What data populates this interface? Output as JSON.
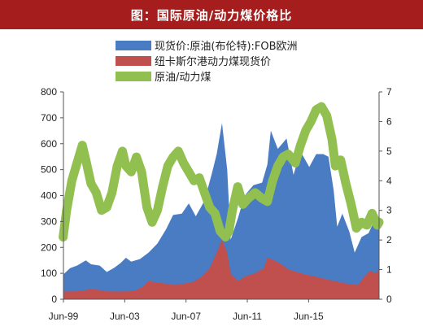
{
  "title": "图：国际原油/动力煤价格比",
  "chart_data": {
    "type": "area",
    "x_labels": [
      "Jun-99",
      "Jun-03",
      "Jun-07",
      "Jun-11",
      "Jun-15"
    ],
    "x_range": [
      1999.42,
      2017.5
    ],
    "y_left": {
      "min": 0,
      "max": 800,
      "ticks": [
        0,
        100,
        200,
        300,
        400,
        500,
        600,
        700,
        800
      ]
    },
    "y_right": {
      "min": 0,
      "max": 7,
      "ticks": [
        0,
        1,
        2,
        3,
        4,
        5,
        6,
        7
      ]
    },
    "series": [
      {
        "name": "现货价:原油(布伦特):FOB欧洲",
        "type": "area",
        "axis": "left",
        "color": "#4a7cc4",
        "points": [
          [
            1999.4,
            95
          ],
          [
            1999.8,
            120
          ],
          [
            2000.2,
            130
          ],
          [
            2000.7,
            150
          ],
          [
            2001.0,
            135
          ],
          [
            2001.5,
            130
          ],
          [
            2001.9,
            105
          ],
          [
            2002.3,
            120
          ],
          [
            2002.7,
            140
          ],
          [
            2003.0,
            160
          ],
          [
            2003.3,
            145
          ],
          [
            2003.8,
            155
          ],
          [
            2004.3,
            180
          ],
          [
            2004.8,
            215
          ],
          [
            2005.3,
            270
          ],
          [
            2005.7,
            325
          ],
          [
            2006.2,
            330
          ],
          [
            2006.6,
            370
          ],
          [
            2007.0,
            320
          ],
          [
            2007.5,
            380
          ],
          [
            2007.9,
            480
          ],
          [
            2008.2,
            560
          ],
          [
            2008.5,
            680
          ],
          [
            2008.8,
            500
          ],
          [
            2009.0,
            230
          ],
          [
            2009.4,
            310
          ],
          [
            2009.8,
            400
          ],
          [
            2010.3,
            440
          ],
          [
            2010.8,
            450
          ],
          [
            2011.1,
            520
          ],
          [
            2011.3,
            650
          ],
          [
            2011.7,
            580
          ],
          [
            2012.2,
            620
          ],
          [
            2012.6,
            480
          ],
          [
            2013.0,
            570
          ],
          [
            2013.5,
            510
          ],
          [
            2013.9,
            560
          ],
          [
            2014.3,
            560
          ],
          [
            2014.6,
            550
          ],
          [
            2014.9,
            420
          ],
          [
            2015.1,
            280
          ],
          [
            2015.4,
            330
          ],
          [
            2015.8,
            260
          ],
          [
            2016.1,
            180
          ],
          [
            2016.5,
            240
          ],
          [
            2016.9,
            255
          ],
          [
            2017.2,
            300
          ],
          [
            2017.5,
            280
          ]
        ]
      },
      {
        "name": "纽卡斯尔港动力煤现货价",
        "type": "area",
        "axis": "left",
        "color": "#c0504d",
        "points": [
          [
            1999.4,
            30
          ],
          [
            2000.0,
            30
          ],
          [
            2000.5,
            32
          ],
          [
            2001.0,
            40
          ],
          [
            2001.5,
            35
          ],
          [
            2002.0,
            30
          ],
          [
            2002.5,
            30
          ],
          [
            2003.0,
            30
          ],
          [
            2003.5,
            32
          ],
          [
            2004.0,
            50
          ],
          [
            2004.3,
            70
          ],
          [
            2004.8,
            65
          ],
          [
            2005.3,
            60
          ],
          [
            2005.8,
            55
          ],
          [
            2006.3,
            60
          ],
          [
            2006.8,
            65
          ],
          [
            2007.3,
            85
          ],
          [
            2007.8,
            120
          ],
          [
            2008.2,
            180
          ],
          [
            2008.5,
            230
          ],
          [
            2008.8,
            180
          ],
          [
            2009.0,
            100
          ],
          [
            2009.4,
            70
          ],
          [
            2009.9,
            90
          ],
          [
            2010.4,
            100
          ],
          [
            2010.9,
            120
          ],
          [
            2011.1,
            160
          ],
          [
            2011.5,
            150
          ],
          [
            2011.9,
            135
          ],
          [
            2012.3,
            115
          ],
          [
            2012.8,
            105
          ],
          [
            2013.3,
            95
          ],
          [
            2013.8,
            88
          ],
          [
            2014.3,
            80
          ],
          [
            2014.8,
            72
          ],
          [
            2015.3,
            65
          ],
          [
            2015.8,
            58
          ],
          [
            2016.3,
            55
          ],
          [
            2016.7,
            90
          ],
          [
            2017.0,
            110
          ],
          [
            2017.3,
            100
          ],
          [
            2017.5,
            115
          ]
        ]
      },
      {
        "name": "原油/动力煤",
        "type": "line",
        "axis": "right",
        "color": "#92c050",
        "points": [
          [
            1999.4,
            2.1
          ],
          [
            1999.6,
            3.0
          ],
          [
            1999.9,
            4.0
          ],
          [
            2000.2,
            4.6
          ],
          [
            2000.5,
            5.2
          ],
          [
            2000.7,
            4.7
          ],
          [
            2001.0,
            3.9
          ],
          [
            2001.3,
            3.6
          ],
          [
            2001.6,
            3.0
          ],
          [
            2001.9,
            3.1
          ],
          [
            2002.2,
            3.6
          ],
          [
            2002.5,
            4.5
          ],
          [
            2002.8,
            5.0
          ],
          [
            2003.0,
            4.5
          ],
          [
            2003.3,
            4.3
          ],
          [
            2003.6,
            4.8
          ],
          [
            2003.9,
            4.3
          ],
          [
            2004.2,
            3.1
          ],
          [
            2004.5,
            2.6
          ],
          [
            2004.8,
            3.0
          ],
          [
            2005.1,
            3.8
          ],
          [
            2005.4,
            4.5
          ],
          [
            2005.7,
            4.8
          ],
          [
            2006.0,
            5.0
          ],
          [
            2006.3,
            4.6
          ],
          [
            2006.6,
            4.3
          ],
          [
            2006.9,
            4.0
          ],
          [
            2007.2,
            4.1
          ],
          [
            2007.5,
            3.6
          ],
          [
            2007.8,
            3.1
          ],
          [
            2008.1,
            2.9
          ],
          [
            2008.4,
            2.3
          ],
          [
            2008.7,
            2.1
          ],
          [
            2008.9,
            2.3
          ],
          [
            2009.1,
            3.0
          ],
          [
            2009.4,
            3.8
          ],
          [
            2009.7,
            3.2
          ],
          [
            2010.0,
            3.4
          ],
          [
            2010.4,
            3.6
          ],
          [
            2010.8,
            3.4
          ],
          [
            2011.1,
            3.3
          ],
          [
            2011.4,
            4.0
          ],
          [
            2011.7,
            4.5
          ],
          [
            2012.0,
            4.8
          ],
          [
            2012.3,
            4.9
          ],
          [
            2012.7,
            4.6
          ],
          [
            2013.0,
            5.2
          ],
          [
            2013.3,
            5.7
          ],
          [
            2013.6,
            6.0
          ],
          [
            2013.9,
            6.4
          ],
          [
            2014.2,
            6.5
          ],
          [
            2014.5,
            6.2
          ],
          [
            2014.8,
            5.4
          ],
          [
            2015.0,
            4.5
          ],
          [
            2015.3,
            4.7
          ],
          [
            2015.6,
            3.9
          ],
          [
            2015.9,
            3.2
          ],
          [
            2016.2,
            2.4
          ],
          [
            2016.5,
            2.6
          ],
          [
            2016.8,
            2.5
          ],
          [
            2017.1,
            2.9
          ],
          [
            2017.4,
            2.5
          ],
          [
            2017.5,
            2.6
          ]
        ]
      }
    ],
    "legend_position": "top",
    "grid": false
  }
}
